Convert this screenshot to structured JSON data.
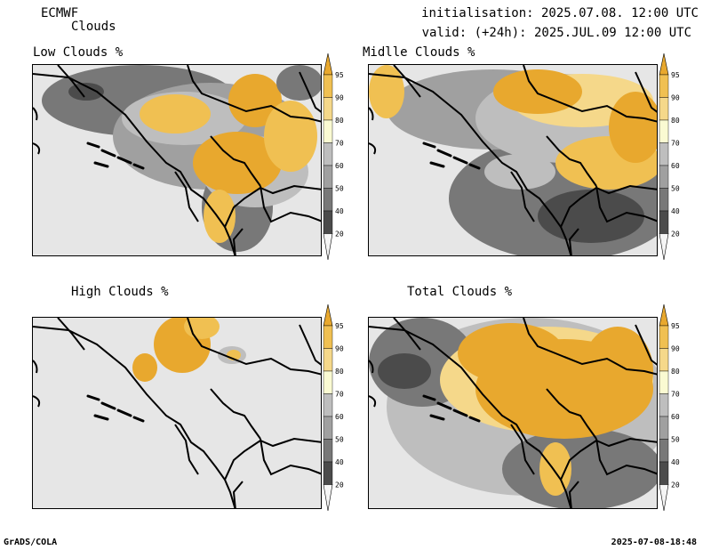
{
  "header": {
    "model": "ECMWF",
    "product": "Clouds",
    "init_line": "initialisation: 2025.07.08. 12:00 UTC",
    "valid_line": "valid: (+24h): 2025.JUL.09 12:00 UTC"
  },
  "panels": [
    {
      "id": "low",
      "title": "Low Clouds %"
    },
    {
      "id": "mid",
      "title": "Midlle Clouds %"
    },
    {
      "id": "high",
      "title": "High Clouds %"
    },
    {
      "id": "total",
      "title": "Total Clouds %"
    }
  ],
  "colorbar": {
    "ticks": [
      "95",
      "90",
      "80",
      "70",
      "60",
      "50",
      "40",
      "20"
    ],
    "colors": [
      "#e8a82e",
      "#f0c052",
      "#f5d88a",
      "#fafad2",
      "#bebebe",
      "#a0a0a0",
      "#787878",
      "#4b4b4b",
      "#f5f5f5"
    ]
  },
  "footer": {
    "software": "GrADS/COLA",
    "timestamp": "2025-07-08-18:48"
  }
}
